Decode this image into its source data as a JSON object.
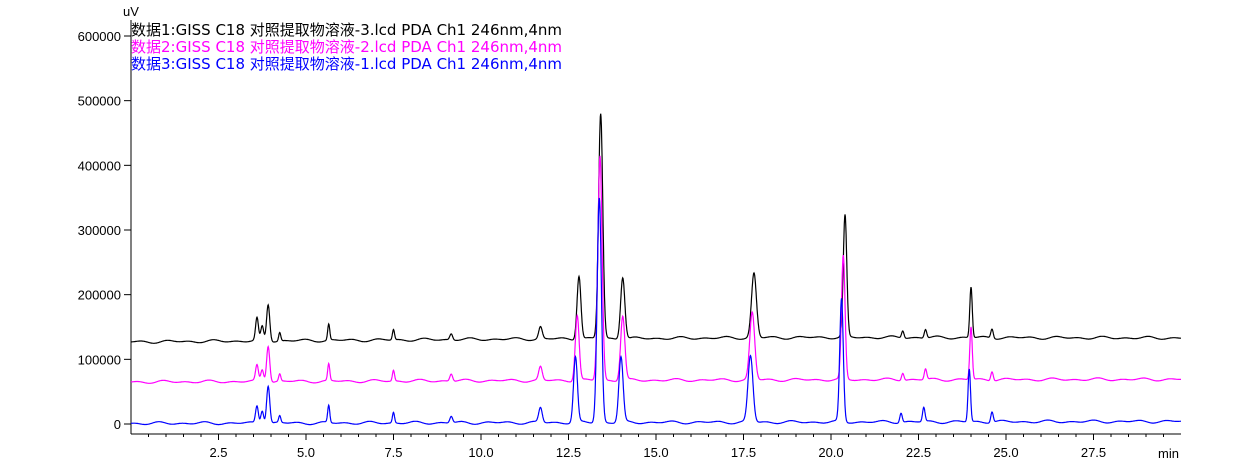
{
  "chart_data": {
    "type": "line",
    "y_unit": "uV",
    "x_unit": "min",
    "xlim": [
      0,
      30
    ],
    "ylim": [
      0,
      620000
    ],
    "x_ticks": [
      2.5,
      5.0,
      7.5,
      10.0,
      12.5,
      15.0,
      17.5,
      20.0,
      22.5,
      25.0,
      27.5
    ],
    "x_tick_labels": [
      "2.5",
      "5.0",
      "7.5",
      "10.0",
      "12.5",
      "15.0",
      "17.5",
      "20.0",
      "22.5",
      "25.0",
      "27.5"
    ],
    "y_ticks": [
      0,
      100000,
      200000,
      300000,
      400000,
      500000,
      600000
    ],
    "y_tick_labels": [
      "0",
      "100000",
      "200000",
      "300000",
      "400000",
      "500000",
      "600000"
    ],
    "grid": false,
    "legend_placement": "top-left",
    "series": [
      {
        "name": "数据1:GISS C18 对照提取物溶液-3.lcd PDA Ch1 246nm,4nm",
        "color": "#000000",
        "baseline": [
          [
            0,
            127000
          ],
          [
            10,
            131000
          ],
          [
            20,
            134000
          ],
          [
            30,
            133000
          ]
        ],
        "peaks": [
          [
            3.6,
            163000,
            0.04
          ],
          [
            3.75,
            150000,
            0.04
          ],
          [
            3.92,
            185000,
            0.045
          ],
          [
            4.25,
            142000,
            0.03
          ],
          [
            5.65,
            154000,
            0.03
          ],
          [
            7.5,
            146000,
            0.03
          ],
          [
            9.15,
            140000,
            0.04
          ],
          [
            11.7,
            150000,
            0.05
          ],
          [
            12.8,
            230000,
            0.055
          ],
          [
            13.42,
            480000,
            0.06
          ],
          [
            14.05,
            228000,
            0.06
          ],
          [
            17.8,
            233000,
            0.07
          ],
          [
            20.4,
            322000,
            0.05
          ],
          [
            22.05,
            145000,
            0.035
          ],
          [
            22.7,
            147000,
            0.035
          ],
          [
            24.0,
            212000,
            0.035
          ],
          [
            24.6,
            148000,
            0.035
          ]
        ]
      },
      {
        "name": "数据2:GISS C18 对照提取物溶液-2.lcd PDA Ch1 246nm,4nm",
        "color": "#ff00ff",
        "baseline": [
          [
            0,
            65000
          ],
          [
            10,
            67000
          ],
          [
            20,
            68500
          ],
          [
            30,
            69000
          ]
        ],
        "peaks": [
          [
            3.6,
            90000,
            0.04
          ],
          [
            3.75,
            84000,
            0.04
          ],
          [
            3.92,
            122000,
            0.045
          ],
          [
            4.25,
            77000,
            0.03
          ],
          [
            5.65,
            92000,
            0.03
          ],
          [
            7.5,
            83000,
            0.03
          ],
          [
            9.15,
            78000,
            0.04
          ],
          [
            11.7,
            88000,
            0.05
          ],
          [
            12.75,
            168000,
            0.055
          ],
          [
            13.4,
            415000,
            0.06
          ],
          [
            14.05,
            167000,
            0.06
          ],
          [
            17.75,
            172000,
            0.07
          ],
          [
            20.35,
            259000,
            0.05
          ],
          [
            22.05,
            80000,
            0.035
          ],
          [
            22.7,
            85000,
            0.035
          ],
          [
            24.0,
            150000,
            0.035
          ],
          [
            24.6,
            83000,
            0.035
          ]
        ]
      },
      {
        "name": "数据3:GISS C18 对照提取物溶液-1.lcd PDA Ch1 246nm,4nm",
        "color": "#0000ff",
        "baseline": [
          [
            0,
            1000
          ],
          [
            10,
            2000
          ],
          [
            20,
            3000
          ],
          [
            30,
            4000
          ]
        ],
        "peaks": [
          [
            3.6,
            28000,
            0.04
          ],
          [
            3.75,
            22000,
            0.04
          ],
          [
            3.92,
            60000,
            0.045
          ],
          [
            4.25,
            12000,
            0.03
          ],
          [
            5.65,
            28000,
            0.03
          ],
          [
            7.5,
            18000,
            0.03
          ],
          [
            9.15,
            12000,
            0.04
          ],
          [
            11.7,
            25000,
            0.05
          ],
          [
            12.7,
            103000,
            0.055
          ],
          [
            13.38,
            350000,
            0.06
          ],
          [
            14.0,
            103000,
            0.06
          ],
          [
            17.7,
            105000,
            0.07
          ],
          [
            20.3,
            193000,
            0.05
          ],
          [
            22.0,
            18000,
            0.035
          ],
          [
            22.65,
            25000,
            0.035
          ],
          [
            23.95,
            85000,
            0.035
          ],
          [
            24.6,
            20000,
            0.035
          ]
        ]
      }
    ]
  }
}
